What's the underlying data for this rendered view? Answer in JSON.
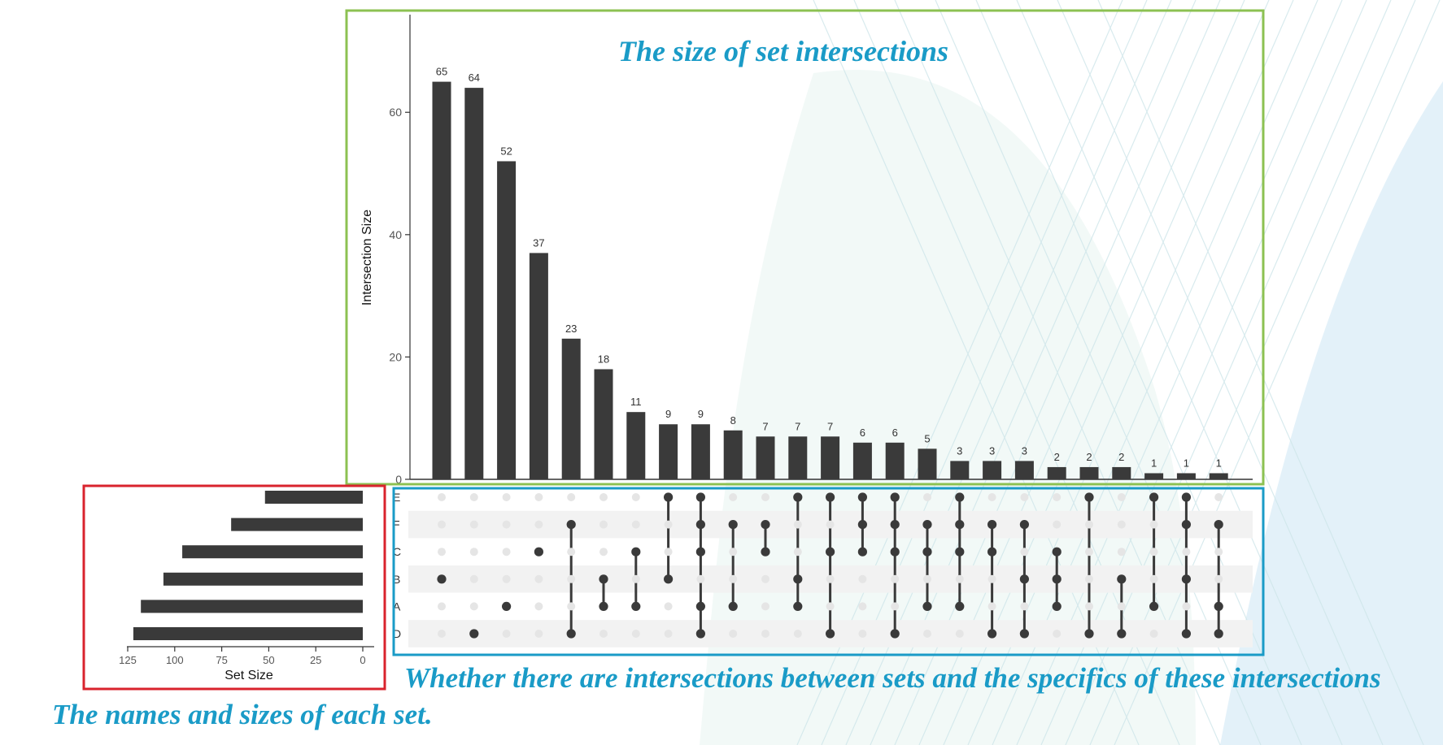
{
  "colors": {
    "bar": "#3a3a3a",
    "dot_active": "#3a3a3a",
    "dot_inactive": "#e5e5e5",
    "stripe": "#f2f2f2",
    "box_intersections": "#8cc152",
    "box_matrix": "#1a9bc7",
    "box_sets": "#d9232d",
    "annotation": "#1a9bc7"
  },
  "annotations": {
    "top": "The size of set intersections",
    "matrix": "Whether there are intersections between sets and the specifics of these intersections",
    "sets": "The names and sizes of each set."
  },
  "chart_data": {
    "type": "upset",
    "sets": [
      "E",
      "F",
      "C",
      "B",
      "A",
      "D"
    ],
    "set_sizes": [
      52,
      70,
      96,
      106,
      118,
      122
    ],
    "set_size_label": "Set Size",
    "set_size_ticks": [
      "125",
      "100",
      "75",
      "50",
      "25",
      "0"
    ],
    "intersection_label": "Intersection Size",
    "intersection_ticks": [
      "0",
      "20",
      "40",
      "60"
    ],
    "intersection_ylim": [
      0,
      75
    ],
    "intersections": [
      {
        "value": 65,
        "sets": [
          "B"
        ]
      },
      {
        "value": 64,
        "sets": [
          "D"
        ]
      },
      {
        "value": 52,
        "sets": [
          "A"
        ]
      },
      {
        "value": 37,
        "sets": [
          "C"
        ]
      },
      {
        "value": 23,
        "sets": [
          "F",
          "D"
        ]
      },
      {
        "value": 18,
        "sets": [
          "B",
          "A"
        ]
      },
      {
        "value": 11,
        "sets": [
          "C",
          "A"
        ]
      },
      {
        "value": 9,
        "sets": [
          "E",
          "B"
        ]
      },
      {
        "value": 9,
        "sets": [
          "E",
          "F",
          "C",
          "A",
          "D"
        ]
      },
      {
        "value": 8,
        "sets": [
          "F",
          "A"
        ]
      },
      {
        "value": 7,
        "sets": [
          "F",
          "C"
        ]
      },
      {
        "value": 7,
        "sets": [
          "E",
          "B",
          "A"
        ]
      },
      {
        "value": 7,
        "sets": [
          "E",
          "C",
          "D"
        ]
      },
      {
        "value": 6,
        "sets": [
          "E",
          "F",
          "C"
        ]
      },
      {
        "value": 6,
        "sets": [
          "E",
          "F",
          "C",
          "D"
        ]
      },
      {
        "value": 5,
        "sets": [
          "F",
          "C",
          "A"
        ]
      },
      {
        "value": 3,
        "sets": [
          "E",
          "F",
          "C",
          "A"
        ]
      },
      {
        "value": 3,
        "sets": [
          "F",
          "C",
          "D"
        ]
      },
      {
        "value": 3,
        "sets": [
          "F",
          "B",
          "D"
        ]
      },
      {
        "value": 2,
        "sets": [
          "C",
          "B",
          "A"
        ]
      },
      {
        "value": 2,
        "sets": [
          "E",
          "D"
        ]
      },
      {
        "value": 2,
        "sets": [
          "B",
          "D"
        ]
      },
      {
        "value": 1,
        "sets": [
          "E",
          "A"
        ]
      },
      {
        "value": 1,
        "sets": [
          "E",
          "F",
          "B",
          "D"
        ]
      },
      {
        "value": 1,
        "sets": [
          "F",
          "A",
          "D"
        ]
      }
    ]
  }
}
